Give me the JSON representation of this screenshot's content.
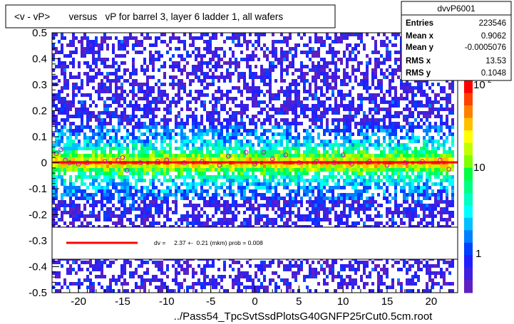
{
  "title": "<v - vP>       versus   vP for barrel 3, layer 6 ladder 1, all wafers",
  "footer": "../Pass54_TpcSvtSsdPlotsG40GNFP25rCut0.5cm.root",
  "stats": {
    "name": "dvvP6001",
    "rows": [
      {
        "label": "Entries",
        "value": "223546"
      },
      {
        "label": "Mean x",
        "value": "0.9062"
      },
      {
        "label": "Mean y",
        "value": "-0.0005076"
      },
      {
        "label": "RMS x",
        "value": "13.53"
      },
      {
        "label": "RMS y",
        "value": "0.1048"
      }
    ]
  },
  "legend": {
    "text": "dv =     2.37 +-  0.21 (mkm) prob = 0.008",
    "line_color": "#ff0000"
  },
  "colorbar": {
    "labels": [
      "10",
      "10",
      "1"
    ],
    "exponent": "2",
    "palette": [
      "#ff0000",
      "#ff4000",
      "#ff8000",
      "#ffc000",
      "#ffff00",
      "#c0ff00",
      "#80ff00",
      "#00ff40",
      "#00ff80",
      "#00ffc0",
      "#00ffff",
      "#00c0ff",
      "#0080ff",
      "#0040ff",
      "#2020ff",
      "#4020e0",
      "#6020c0"
    ]
  },
  "chart_data": {
    "type": "heatmap",
    "title": "<v - vP>       versus   vP for barrel 3, layer 6 ladder 1, all wafers",
    "xlabel": "",
    "ylabel": "",
    "xlim": [
      -23,
      23
    ],
    "ylim": [
      -0.5,
      0.5
    ],
    "x_ticks": [
      "-20",
      "-15",
      "-10",
      "-5",
      "0",
      "5",
      "10",
      "15",
      "20"
    ],
    "x_tick_values": [
      -20,
      -15,
      -10,
      -5,
      0,
      5,
      10,
      15,
      20
    ],
    "y_ticks": [
      "0.5",
      "0.4",
      "0.3",
      "0.2",
      "0.1",
      "0",
      "-0.1",
      "-0.2",
      "-0.3",
      "-0.4",
      "-0.5"
    ],
    "y_tick_values": [
      0.5,
      0.4,
      0.3,
      0.2,
      0.1,
      0,
      -0.1,
      -0.2,
      -0.3,
      -0.4,
      -0.5
    ],
    "z_scale": "log",
    "fit": {
      "value_mkm": 2.37,
      "error_mkm": 0.21,
      "prob": 0.008
    },
    "profile_points": [
      {
        "x": -22.5,
        "y": 0.035
      },
      {
        "x": -22,
        "y": 0.05
      },
      {
        "x": -21.5,
        "y": 0.01
      },
      {
        "x": -21,
        "y": 0.0
      },
      {
        "x": -20,
        "y": -0.005
      },
      {
        "x": -19,
        "y": 0.0
      },
      {
        "x": -17,
        "y": 0.005
      },
      {
        "x": -15.5,
        "y": 0.01
      },
      {
        "x": -15,
        "y": 0.02
      },
      {
        "x": -14.5,
        "y": -0.03
      },
      {
        "x": -13,
        "y": 0.0
      },
      {
        "x": -11,
        "y": 0.005
      },
      {
        "x": -10,
        "y": 0.01
      },
      {
        "x": -8,
        "y": 0.0
      },
      {
        "x": -6,
        "y": 0.005
      },
      {
        "x": -4,
        "y": -0.01
      },
      {
        "x": -3,
        "y": 0.025
      },
      {
        "x": -1,
        "y": 0.04
      },
      {
        "x": 0,
        "y": -0.005
      },
      {
        "x": 1,
        "y": 0.04
      },
      {
        "x": 2,
        "y": 0.015
      },
      {
        "x": 3.5,
        "y": 0.03
      },
      {
        "x": 5,
        "y": 0.0
      },
      {
        "x": 7,
        "y": 0.005
      },
      {
        "x": 9,
        "y": 0.0
      },
      {
        "x": 10,
        "y": 0.03
      },
      {
        "x": 11,
        "y": -0.005
      },
      {
        "x": 13,
        "y": 0.005
      },
      {
        "x": 15,
        "y": -0.01
      },
      {
        "x": 17,
        "y": 0.0
      },
      {
        "x": 19,
        "y": 0.005
      },
      {
        "x": 21,
        "y": 0.01
      },
      {
        "x": 22,
        "y": -0.025
      }
    ],
    "legend": [
      "dv =     2.37 +-  0.21 (mkm) prob = 0.008"
    ]
  }
}
